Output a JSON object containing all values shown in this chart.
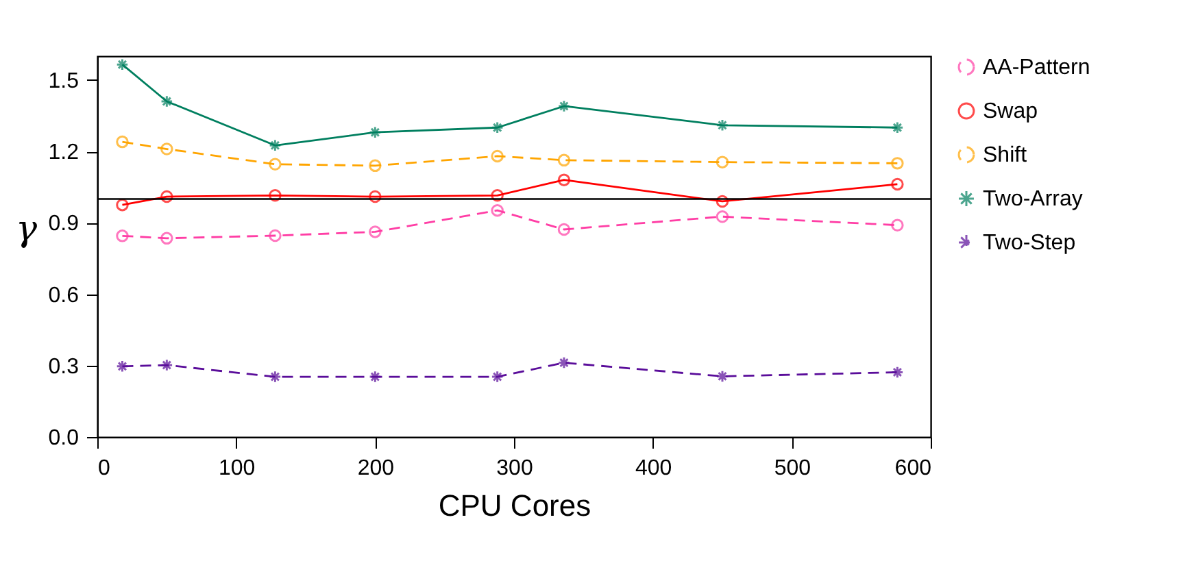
{
  "chart_data": {
    "type": "line",
    "xlabel": "CPU Cores",
    "ylabel": "γ",
    "x": [
      18,
      50,
      128,
      200,
      288,
      336,
      450,
      576
    ],
    "xlim": [
      0,
      600
    ],
    "xticks": [
      0,
      100,
      200,
      300,
      400,
      500,
      600
    ],
    "ylim": [
      0,
      1.6
    ],
    "yticks": [
      {
        "value": 0,
        "label": "0.0"
      },
      {
        "value": 0.3,
        "label": "0.3"
      },
      {
        "value": 0.6,
        "label": "0.6"
      },
      {
        "value": 0.9,
        "label": "0.9"
      },
      {
        "value": 1.2,
        "label": "1.2"
      },
      {
        "value": 1.5,
        "label": "1.5"
      }
    ],
    "grid": false,
    "legend": "right",
    "ref_lines": [
      {
        "axis": "y",
        "value": 1,
        "color": "#000000"
      }
    ],
    "series": [
      {
        "name": "AA-Pattern",
        "color": "#ff3ea5",
        "marker": "circle",
        "line_style": "dashed",
        "values": [
          0.845,
          0.835,
          0.846,
          0.862,
          0.952,
          0.872,
          0.926,
          0.89
        ]
      },
      {
        "name": "Swap",
        "color": "#ff0000",
        "marker": "circle",
        "line_style": "solid",
        "values": [
          0.975,
          1.01,
          1.015,
          1.01,
          1.015,
          1.08,
          0.99,
          1.062
        ]
      },
      {
        "name": "Shift",
        "color": "#ffa500",
        "marker": "circle",
        "line_style": "dashed",
        "values": [
          1.24,
          1.21,
          1.146,
          1.14,
          1.18,
          1.163,
          1.155,
          1.15
        ]
      },
      {
        "name": "Two-Array",
        "color": "#007f5f",
        "marker": "cross",
        "line_style": "solid",
        "values": [
          1.565,
          1.41,
          1.225,
          1.28,
          1.3,
          1.39,
          1.31,
          1.3
        ]
      },
      {
        "name": "Two-Step",
        "color": "#5a0d9a",
        "marker": "cross",
        "line_style": "dashed",
        "values": [
          0.297,
          0.302,
          0.253,
          0.253,
          0.253,
          0.312,
          0.255,
          0.272
        ]
      }
    ]
  }
}
